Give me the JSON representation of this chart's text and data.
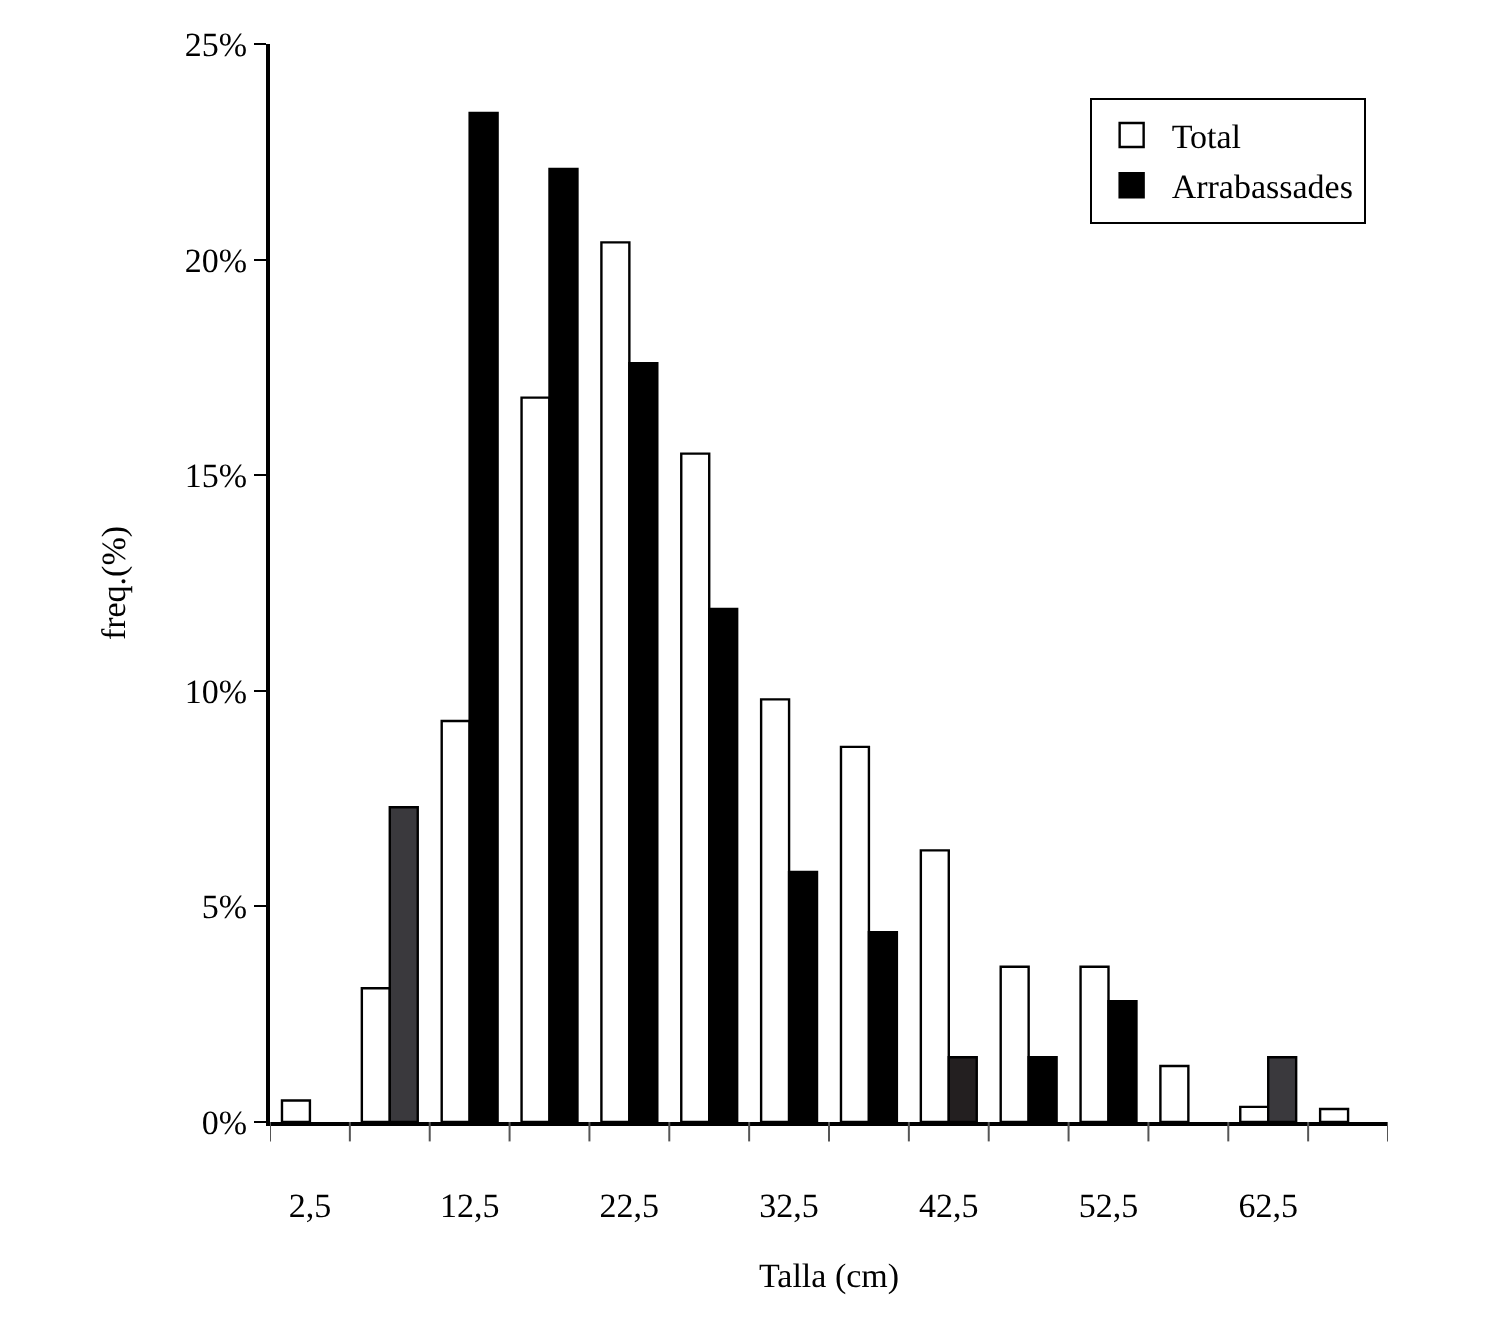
{
  "chart_data": {
    "type": "bar",
    "xlabel": "Talla (cm)",
    "ylabel": "freq.(%)",
    "categories": [
      "2,5",
      null,
      "12,5",
      null,
      "22,5",
      null,
      "32,5",
      null,
      "42,5",
      null,
      "52,5",
      null,
      "62,5",
      null
    ],
    "series": [
      {
        "name": "Total",
        "color": "#ffffff",
        "values": [
          0.5,
          3.1,
          9.3,
          16.8,
          20.4,
          15.5,
          9.8,
          8.7,
          6.3,
          3.6,
          3.6,
          1.3,
          0.35,
          0.3
        ]
      },
      {
        "name": "Arrabassades",
        "color": "#000000",
        "colors": [
          null,
          "#3a393d",
          null,
          null,
          null,
          null,
          null,
          null,
          "#231f20",
          null,
          null,
          null,
          "#3a393d",
          null
        ],
        "values": [
          null,
          7.3,
          23.4,
          22.1,
          17.6,
          11.9,
          5.8,
          4.4,
          1.5,
          1.5,
          2.8,
          null,
          1.5,
          null
        ]
      }
    ],
    "ylim": [
      0,
      25
    ],
    "yticks": [
      {
        "value": 0,
        "label": "0%"
      },
      {
        "value": 5,
        "label": "5%"
      },
      {
        "value": 10,
        "label": "10%"
      },
      {
        "value": 15,
        "label": "15%"
      },
      {
        "value": 20,
        "label": "20%"
      },
      {
        "value": 25,
        "label": "25%"
      }
    ],
    "grid": false,
    "legend": "top right"
  }
}
